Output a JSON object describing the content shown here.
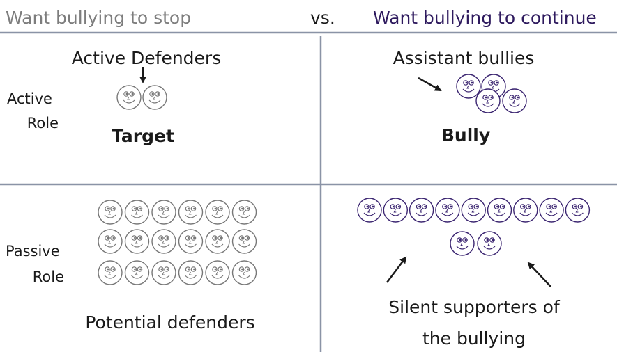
{
  "header": {
    "left": "Want bullying to stop",
    "vs": "vs.",
    "right": "Want bullying to continue"
  },
  "rows": [
    {
      "label": [
        "Active",
        "Role"
      ]
    },
    {
      "label": [
        "Passive",
        "Role"
      ]
    }
  ],
  "quadrants": {
    "active_stop": {
      "group": "Active Defenders",
      "center": "Target"
    },
    "active_continue": {
      "group": "Assistant bullies",
      "center": "Bully"
    },
    "passive_stop": {
      "group": "Potential defenders"
    },
    "passive_continue": {
      "group": [
        "Silent supporters of",
        "the bullying"
      ]
    }
  }
}
